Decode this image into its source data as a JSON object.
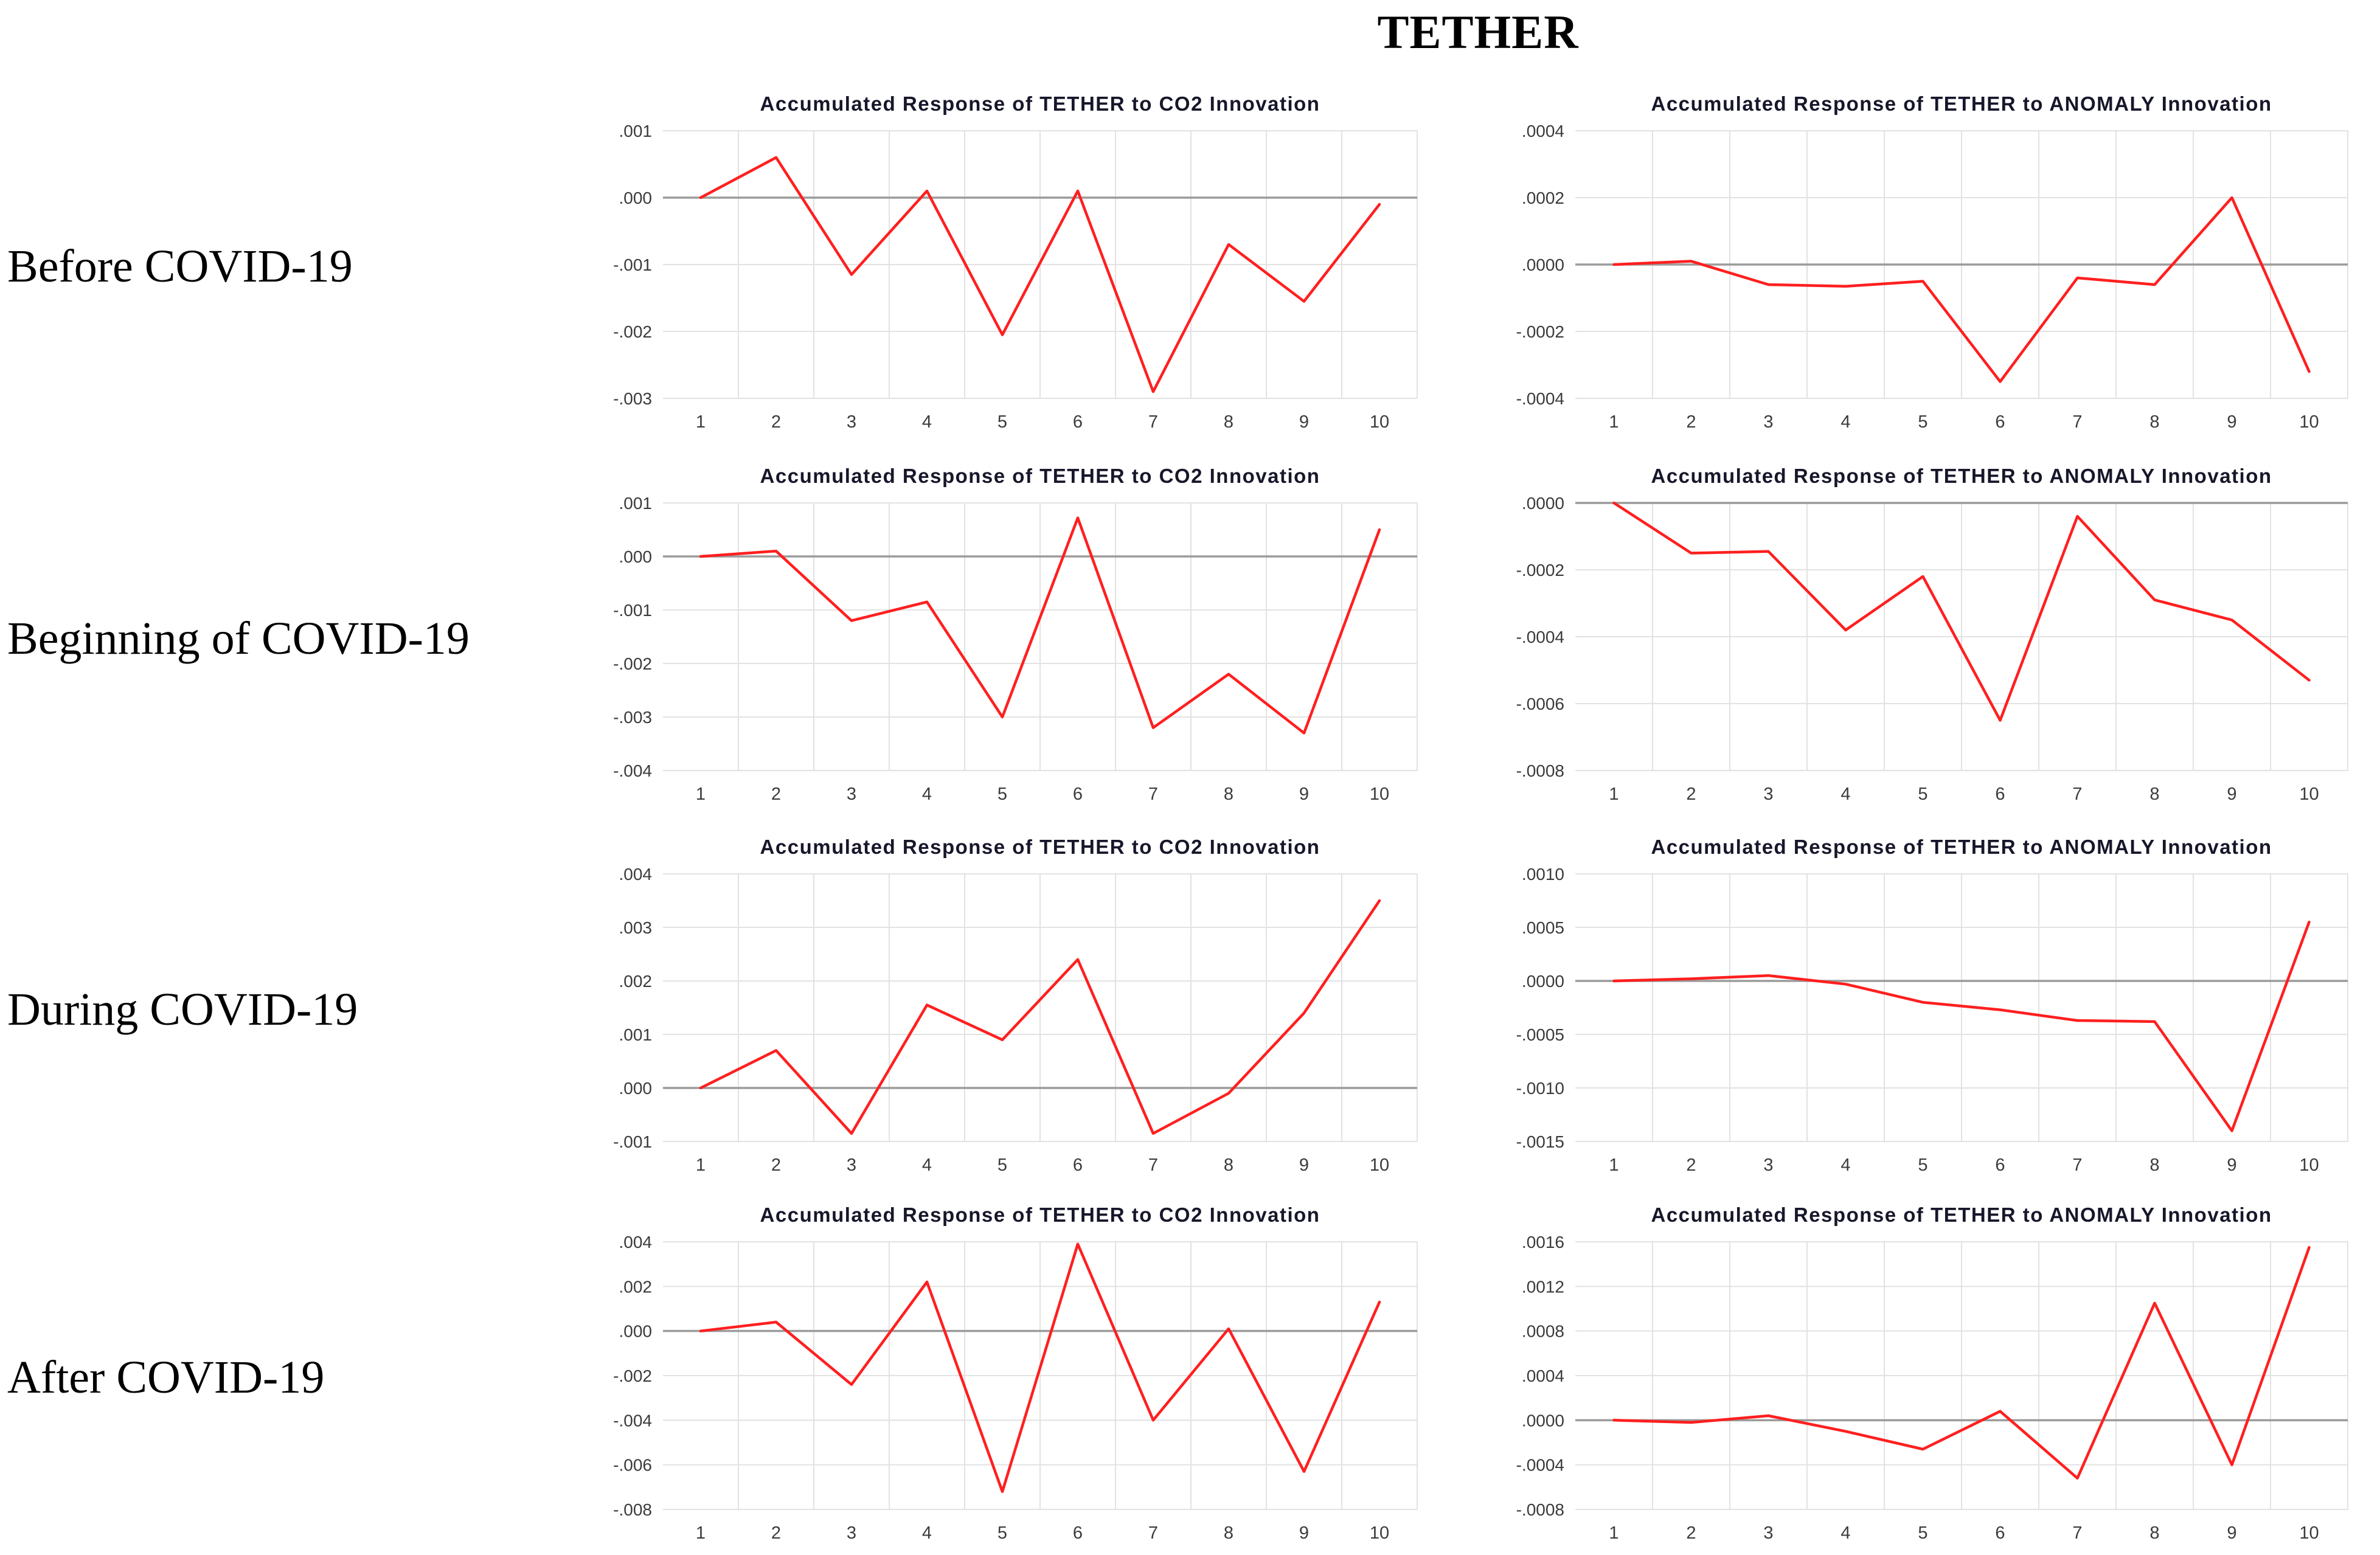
{
  "title": "TETHER",
  "row_labels": [
    "Before COVID-19",
    "Beginning of COVID-19",
    "During COVID-19",
    "After COVID-19"
  ],
  "colors": {
    "line": "#ff1f1f",
    "grid": "#e2e2e2",
    "zero_line": "#9b9b9b",
    "tick_text": "#3b3b3b",
    "title_text": "#17172b"
  },
  "chart_data": [
    {
      "type": "line",
      "row": 0,
      "col": 0,
      "row_label": "Before COVID-19",
      "title": "Accumulated Response of TETHER to CO2 Innovation",
      "x": [
        1,
        2,
        3,
        4,
        5,
        6,
        7,
        8,
        9,
        10
      ],
      "values": [
        0.0,
        0.0006,
        -0.00115,
        0.0001,
        -0.00205,
        0.0001,
        -0.0029,
        -0.0007,
        -0.00155,
        -0.0001
      ],
      "ytick_values": [
        0.001,
        0.0,
        -0.001,
        -0.002,
        -0.003
      ],
      "ytick_labels": [
        ".001",
        ".000",
        "-.001",
        "-.002",
        "-.003"
      ],
      "ylim": [
        -0.003,
        0.001
      ],
      "grid": true,
      "legend": "none"
    },
    {
      "type": "line",
      "row": 0,
      "col": 1,
      "row_label": "Before COVID-19",
      "title": "Accumulated Response of TETHER to ANOMALY Innovation",
      "x": [
        1,
        2,
        3,
        4,
        5,
        6,
        7,
        8,
        9,
        10
      ],
      "values": [
        0.0,
        1e-05,
        -6e-05,
        -6.5e-05,
        -5e-05,
        -0.00035,
        -4e-05,
        -6e-05,
        0.0002,
        -0.00032
      ],
      "ytick_values": [
        0.0004,
        0.0002,
        0.0,
        -0.0002,
        -0.0004
      ],
      "ytick_labels": [
        ".0004",
        ".0002",
        ".0000",
        "-.0002",
        "-.0004"
      ],
      "ylim": [
        -0.0004,
        0.0004
      ],
      "grid": true,
      "legend": "none"
    },
    {
      "type": "line",
      "row": 1,
      "col": 0,
      "row_label": "Beginning of COVID-19",
      "title": "Accumulated Response of TETHER to CO2 Innovation",
      "x": [
        1,
        2,
        3,
        4,
        5,
        6,
        7,
        8,
        9,
        10
      ],
      "values": [
        0.0,
        0.0001,
        -0.0012,
        -0.00085,
        -0.003,
        0.00072,
        -0.0032,
        -0.0022,
        -0.0033,
        0.0005
      ],
      "ytick_values": [
        0.001,
        0.0,
        -0.001,
        -0.002,
        -0.003,
        -0.004
      ],
      "ytick_labels": [
        ".001",
        ".000",
        "-.001",
        "-.002",
        "-.003",
        "-.004"
      ],
      "ylim": [
        -0.004,
        0.001
      ],
      "grid": true,
      "legend": "none"
    },
    {
      "type": "line",
      "row": 1,
      "col": 1,
      "row_label": "Beginning of COVID-19",
      "title": "Accumulated Response of TETHER to ANOMALY Innovation",
      "x": [
        1,
        2,
        3,
        4,
        5,
        6,
        7,
        8,
        9,
        10
      ],
      "values": [
        0.0,
        -0.00015,
        -0.000145,
        -0.00038,
        -0.00022,
        -0.00065,
        -4e-05,
        -0.00029,
        -0.00035,
        -0.00053
      ],
      "ytick_values": [
        0.0,
        -0.0002,
        -0.0004,
        -0.0006,
        -0.0008
      ],
      "ytick_labels": [
        ".0000",
        "-.0002",
        "-.0004",
        "-.0006",
        "-.0008"
      ],
      "ylim": [
        -0.0008,
        0.0
      ],
      "grid": true,
      "legend": "none"
    },
    {
      "type": "line",
      "row": 2,
      "col": 0,
      "row_label": "During COVID-19",
      "title": "Accumulated Response of TETHER to CO2 Innovation",
      "x": [
        1,
        2,
        3,
        4,
        5,
        6,
        7,
        8,
        9,
        10
      ],
      "values": [
        0.0,
        0.0007,
        -0.00085,
        0.00155,
        0.0009,
        0.0024,
        -0.00085,
        -0.0001,
        0.0014,
        0.0035
      ],
      "ytick_values": [
        0.004,
        0.003,
        0.002,
        0.001,
        0.0,
        -0.001
      ],
      "ytick_labels": [
        ".004",
        ".003",
        ".002",
        ".001",
        ".000",
        "-.001"
      ],
      "ylim": [
        -0.001,
        0.004
      ],
      "grid": true,
      "legend": "none"
    },
    {
      "type": "line",
      "row": 2,
      "col": 1,
      "row_label": "During COVID-19",
      "title": "Accumulated Response of TETHER to ANOMALY Innovation",
      "x": [
        1,
        2,
        3,
        4,
        5,
        6,
        7,
        8,
        9,
        10
      ],
      "values": [
        0.0,
        2e-05,
        5e-05,
        -3e-05,
        -0.0002,
        -0.00027,
        -0.00037,
        -0.00038,
        -0.0014,
        0.00055
      ],
      "ytick_values": [
        0.001,
        0.0005,
        0.0,
        -0.0005,
        -0.001,
        -0.0015
      ],
      "ytick_labels": [
        ".0010",
        ".0005",
        ".0000",
        "-.0005",
        "-.0010",
        "-.0015"
      ],
      "ylim": [
        -0.0015,
        0.001
      ],
      "grid": true,
      "legend": "none"
    },
    {
      "type": "line",
      "row": 3,
      "col": 0,
      "row_label": "After COVID-19",
      "title": "Accumulated Response of TETHER to CO2 Innovation",
      "x": [
        1,
        2,
        3,
        4,
        5,
        6,
        7,
        8,
        9,
        10
      ],
      "values": [
        0.0,
        0.0004,
        -0.0024,
        0.0022,
        -0.0072,
        0.0039,
        -0.004,
        0.0001,
        -0.0063,
        0.0013
      ],
      "ytick_values": [
        0.004,
        0.002,
        0.0,
        -0.002,
        -0.004,
        -0.006,
        -0.008
      ],
      "ytick_labels": [
        ".004",
        ".002",
        ".000",
        "-.002",
        "-.004",
        "-.006",
        "-.008"
      ],
      "ylim": [
        -0.008,
        0.004
      ],
      "grid": true,
      "legend": "none"
    },
    {
      "type": "line",
      "row": 3,
      "col": 1,
      "row_label": "After COVID-19",
      "title": "Accumulated Response of TETHER to ANOMALY Innovation",
      "x": [
        1,
        2,
        3,
        4,
        5,
        6,
        7,
        8,
        9,
        10
      ],
      "values": [
        0.0,
        -2e-05,
        4e-05,
        -0.0001,
        -0.00026,
        8e-05,
        -0.00052,
        0.00105,
        -0.0004,
        0.00155
      ],
      "ytick_values": [
        0.0016,
        0.0012,
        0.0008,
        0.0004,
        0.0,
        -0.0004,
        -0.0008
      ],
      "ytick_labels": [
        ".0016",
        ".0012",
        ".0008",
        ".0004",
        ".0000",
        "-.0004",
        "-.0008"
      ],
      "ylim": [
        -0.0008,
        0.0016
      ],
      "grid": true,
      "legend": "none"
    }
  ]
}
